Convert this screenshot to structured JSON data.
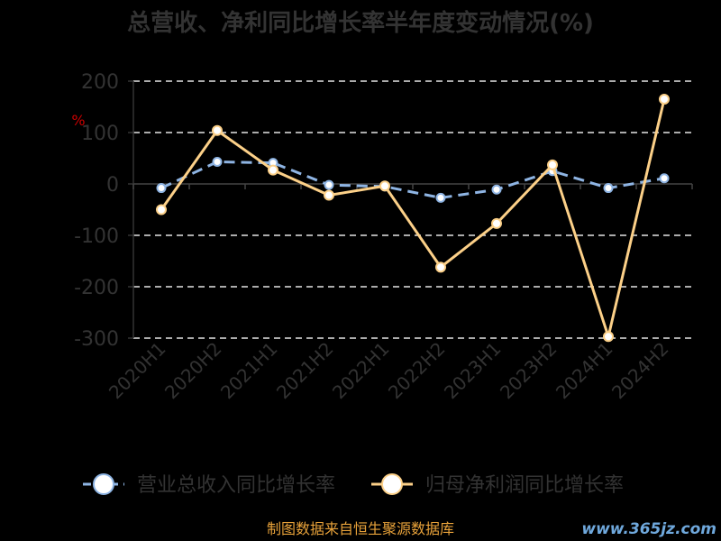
{
  "chart_data": {
    "type": "line",
    "title": "总营收、净利同比增长率半年度变动情况(%)",
    "ylabel": "%",
    "categories": [
      "2020H1",
      "2020H2",
      "2021H1",
      "2021H2",
      "2022H1",
      "2022H2",
      "2023H1",
      "2023H2",
      "2024H1",
      "2024H2"
    ],
    "ylim": [
      -300,
      200
    ],
    "yticks": [
      200,
      100,
      0,
      -100,
      -200,
      -300
    ],
    "yticklabels": [
      "200",
      "100",
      "0",
      "-100",
      "-200",
      "-300"
    ],
    "grid": true,
    "legend_position": "bottom",
    "series": [
      {
        "name": "营业总收入同比增长率",
        "color": "#8eb4e3",
        "dashed": true,
        "values": [
          -8,
          43,
          41,
          -2,
          -5,
          -27,
          -11,
          25,
          -8,
          11
        ]
      },
      {
        "name": "归母净利润同比增长率",
        "color": "#fcd088",
        "dashed": false,
        "values": [
          -50,
          104,
          27,
          -22,
          -4,
          -162,
          -77,
          37,
          -297,
          165
        ]
      }
    ]
  },
  "source": "制图数据来自恒生聚源数据库",
  "watermark": "www.365jz.com"
}
